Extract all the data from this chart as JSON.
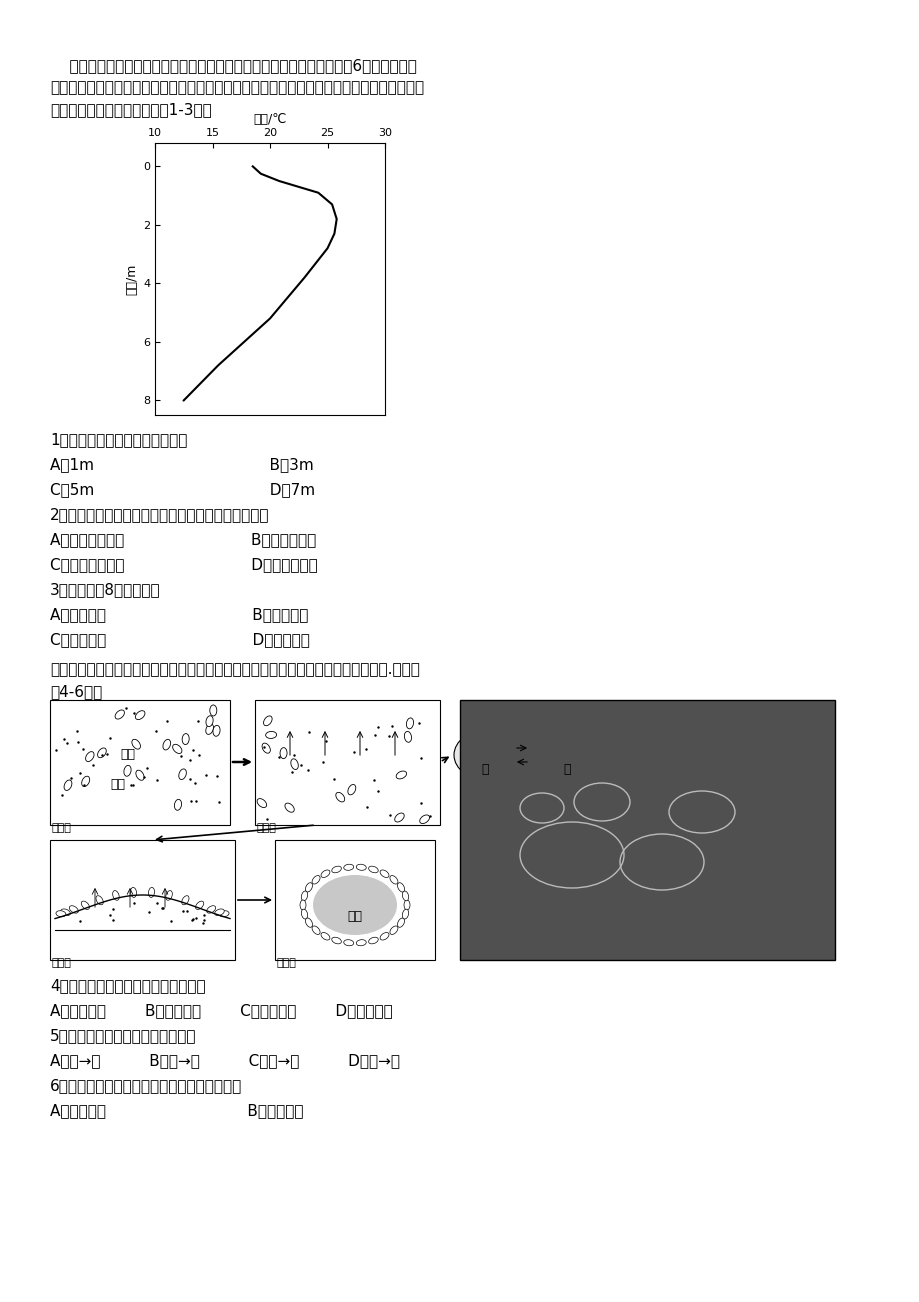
{
  "bg_color": "#ffffff",
  "para1_lines": [
    "    水温是湖泊的重要性质之一。下图示意内蒙古巴丹吉林沙漠车日格勒湖6月份水温随深",
    "度的变化，湖水自上而下分为混合层、相对高温层（水温最高且变化相对较小）和温跃层（水",
    "温逐渐下降）。据此完成下列1-3题。"
  ],
  "chart_xlabel": "水温/℃",
  "chart_x_ticks": [
    10,
    15,
    20,
    25,
    30
  ],
  "chart_y_ticks": [
    0,
    2,
    4,
    6,
    8
  ],
  "chart_ylabel": "水深/m",
  "curve_temp": [
    18.5,
    19.2,
    20.8,
    24.2,
    25.4,
    25.8,
    25.6,
    25.0,
    23.0,
    20.0,
    15.5,
    12.5
  ],
  "curve_depth": [
    0.0,
    0.25,
    0.5,
    0.9,
    1.3,
    1.8,
    2.3,
    2.8,
    3.8,
    5.2,
    6.8,
    8.0
  ],
  "q1_3": [
    "1．该月份混合层的深度最可能为",
    "A．1m                                    B．3m",
    "C．5m                                    D．7m",
    "2．该月份混合层水温低于相对高温层，原因最可能是",
    "A．冰川融水汇入                          B．大气降水多",
    "C．湖岸泉水汇入                          D．太阳辐射弱",
    "3．推测该湖8月份混合层",
    "A．厚度增大                              B．厚度减小",
    "C．厚度不变                              D．完全消失"
  ],
  "stone_intro_line1": "石环是一种特殊的地表形态，下左图为石环形成过程示意图，右图为某地石环景观图.据此完",
  "stone_intro_line2": "成4-6题。",
  "q4_6": [
    "4．石环形成过程中的主要外力作用是",
    "A．冻融作用        B．流水搬运        C．冰川沉积        D．风力沉积",
    "5．砾石上升幅度最大的时段可能是",
    "A．冬→春          B．春→夏          C．夏→秋          D．秋→冬",
    "6．下列四个地形区中，最可能有石环景观的是",
    "A．华北平原                             B．四川盆地"
  ]
}
